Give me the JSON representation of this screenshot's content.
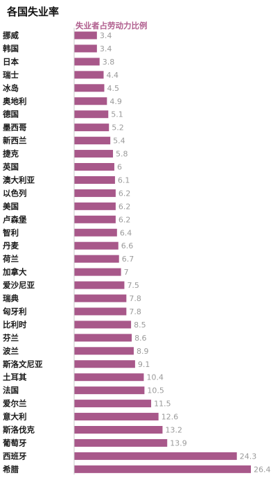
{
  "chart_data": {
    "type": "bar",
    "orientation": "horizontal",
    "title": "各国失业率",
    "subtitle": "失业者占劳动力比例",
    "categories": [
      "挪威",
      "韩国",
      "日本",
      "瑞士",
      "冰岛",
      "奥地利",
      "德国",
      "墨西哥",
      "新西兰",
      "捷克",
      "英国",
      "澳大利亚",
      "以色列",
      "美国",
      "卢森堡",
      "智利",
      "丹麦",
      "荷兰",
      "加拿大",
      "爱沙尼亚",
      "瑞典",
      "匈牙利",
      "比利时",
      "芬兰",
      "波兰",
      "斯洛文尼亚",
      "土耳其",
      "法国",
      "爱尔兰",
      "意大利",
      "斯洛伐克",
      "葡萄牙",
      "西班牙",
      "希腊"
    ],
    "values": [
      3.4,
      3.4,
      3.8,
      4.4,
      4.5,
      4.9,
      5.1,
      5.2,
      5.4,
      5.8,
      6,
      6.1,
      6.2,
      6.2,
      6.2,
      6.4,
      6.6,
      6.7,
      7,
      7.5,
      7.8,
      7.8,
      8.5,
      8.6,
      8.9,
      9.1,
      10.4,
      10.5,
      11.5,
      12.6,
      13.2,
      13.9,
      24.3,
      26.4
    ],
    "value_labels": [
      "3.4",
      "3.4",
      "3.8",
      "4.4",
      "4.5",
      "4.9",
      "5.1",
      "5.2",
      "5.4",
      "5.8",
      "6",
      "6.1",
      "6.2",
      "6.2",
      "6.2",
      "6.4",
      "6.6",
      "6.7",
      "7",
      "7.5",
      "7.8",
      "7.8",
      "8.5",
      "8.6",
      "8.9",
      "9.1",
      "10.4",
      "10.5",
      "11.5",
      "12.6",
      "13.2",
      "13.9",
      "24.3",
      "26.4"
    ],
    "xlim": [
      0,
      26.4
    ],
    "grid": false,
    "legend": "none",
    "bar_color": "#a8588a",
    "axis_color": "#c8c8c8"
  }
}
